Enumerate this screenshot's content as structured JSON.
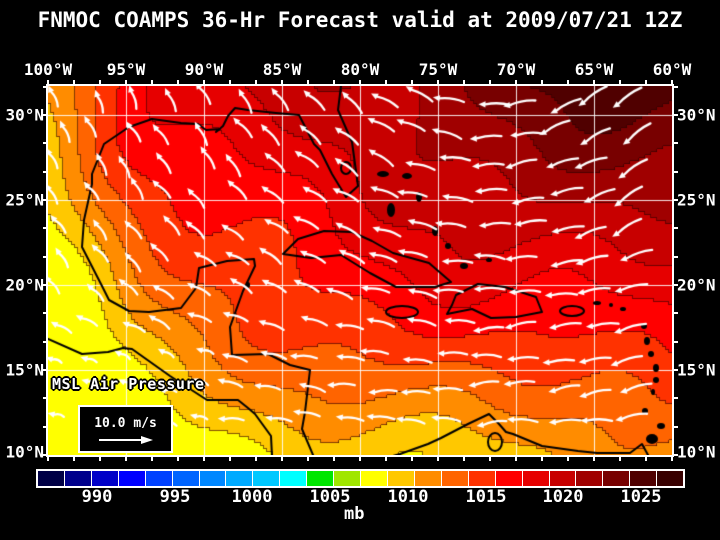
{
  "title": "FNMOC COAMPS 36-Hr Forecast valid at 2009/07/21 12Z",
  "map": {
    "top_axis_labels": [
      "100°W",
      "95°W",
      "90°W",
      "85°W",
      "80°W",
      "75°W",
      "70°W",
      "65°W",
      "60°W"
    ],
    "left_axis_labels": [
      "30°N",
      "25°N",
      "20°N",
      "15°N",
      "10°N"
    ],
    "right_axis_labels": [
      "30°N",
      "25°N",
      "20°N",
      "15°N",
      "10°N"
    ],
    "field_label": "MSL Air Pressure",
    "wind_scale": {
      "value_label": "10.0 m/s"
    }
  },
  "colorbar": {
    "unit_label": "mb",
    "tick_labels": [
      "990",
      "995",
      "1000",
      "1005",
      "1010",
      "1015",
      "1020",
      "1025"
    ],
    "segment_colors": [
      "#000046",
      "#00008C",
      "#0000C8",
      "#0000FF",
      "#0041FF",
      "#0064FF",
      "#0087FF",
      "#00AAFF",
      "#00C8FF",
      "#00FFFF",
      "#00E600",
      "#A0E600",
      "#FFFF00",
      "#FFC800",
      "#FF8C00",
      "#FF6400",
      "#FF3200",
      "#FF0000",
      "#E60000",
      "#C80000",
      "#A00000",
      "#780000",
      "#500000",
      "#380000"
    ]
  },
  "chart_data": {
    "type": "heatmap",
    "title": "FNMOC COAMPS 36-Hr Forecast valid at 2009/07/21 12Z",
    "field": "MSL Air Pressure",
    "units": "mb",
    "x_axis": {
      "label": "longitude",
      "ticks": [
        "100°W",
        "95°W",
        "90°W",
        "85°W",
        "80°W",
        "75°W",
        "70°W",
        "65°W",
        "60°W"
      ]
    },
    "y_axis": {
      "label": "latitude",
      "ticks": [
        "30°N",
        "25°N",
        "20°N",
        "15°N",
        "10°N"
      ]
    },
    "colorbar_ticks_mb": [
      990,
      995,
      1000,
      1005,
      1010,
      1015,
      1020,
      1025
    ],
    "wind_reference": "10.0 m/s",
    "pattern_summary": "Pressure rises from about 1008 mb (yellow band along west Mexico and the southern/Pacific edge) through orange and red across the Gulf of Mexico and Caribbean to about 1026 mb (dark maroon Atlantic subtropical high in the northeast corner); white wind vectors show easterly trades across the Caribbean and southerly flow over the western Gulf."
  }
}
